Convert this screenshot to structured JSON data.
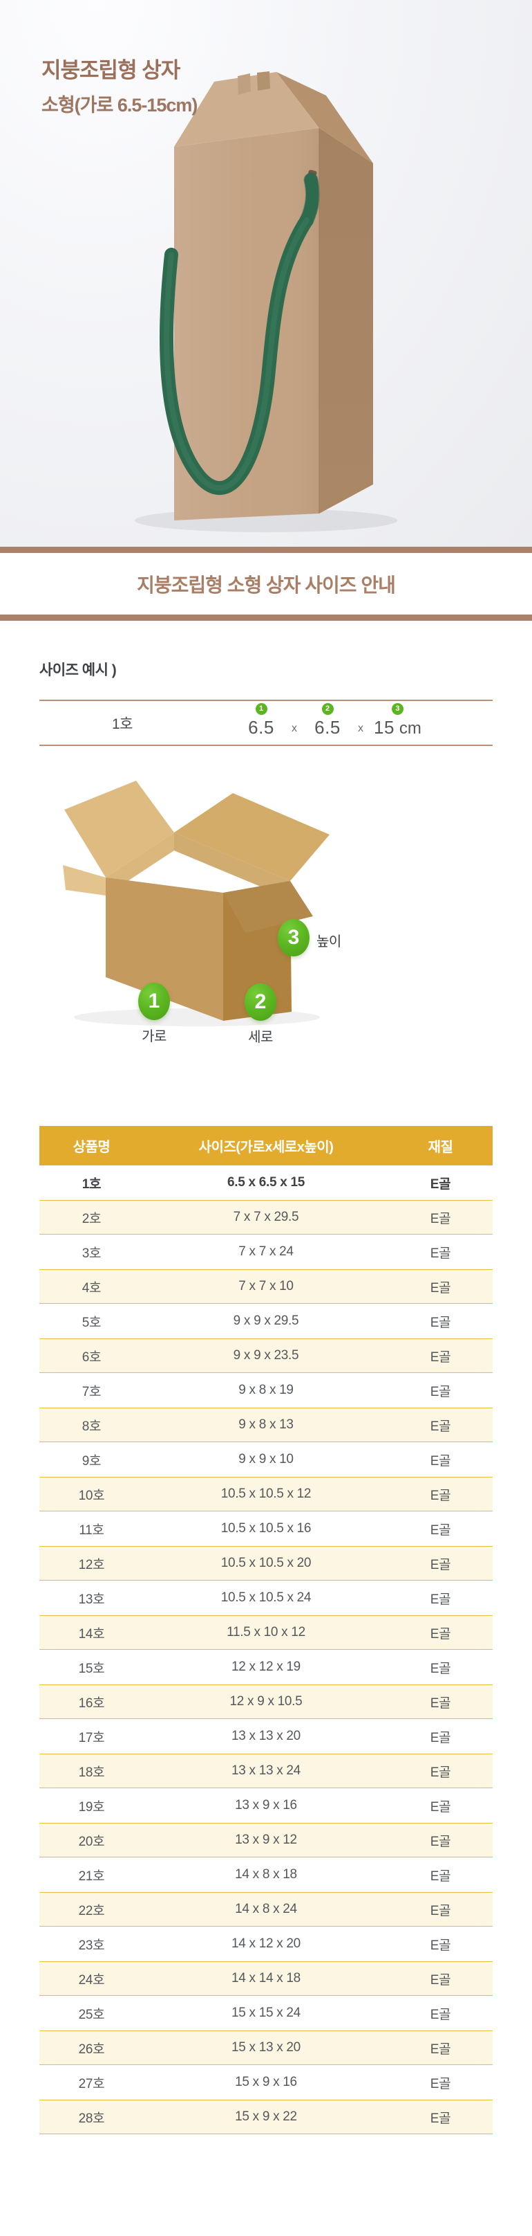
{
  "page": {
    "title": "지붕조립형 상자",
    "subtitle": "소형(가로 6.5-15cm)"
  },
  "banner": {
    "heading": "지붕조립형 소형 상자 사이즈 안내"
  },
  "size_example": {
    "label": "사이즈 예시 )",
    "item_name": "1호",
    "separator": "x",
    "unit": "cm",
    "measures": [
      {
        "num": "1",
        "value": "6.5"
      },
      {
        "num": "2",
        "value": "6.5"
      },
      {
        "num": "3",
        "value": "15"
      }
    ]
  },
  "diagram": {
    "badges": [
      {
        "num": "1",
        "label": "가로"
      },
      {
        "num": "2",
        "label": "세로"
      },
      {
        "num": "3",
        "label": "높이"
      }
    ]
  },
  "table": {
    "headers": [
      "상품명",
      "사이즈(가로x세로x높이)",
      "재질"
    ],
    "rows": [
      {
        "name": "1호",
        "size": "6.5 x 6.5 x 15",
        "material": "E골"
      },
      {
        "name": "2호",
        "size": "7 x 7 x 29.5",
        "material": "E골"
      },
      {
        "name": "3호",
        "size": "7 x 7 x 24",
        "material": "E골"
      },
      {
        "name": "4호",
        "size": "7 x 7 x 10",
        "material": "E골"
      },
      {
        "name": "5호",
        "size": "9 x 9 x 29.5",
        "material": "E골"
      },
      {
        "name": "6호",
        "size": "9 x 9 x 23.5",
        "material": "E골"
      },
      {
        "name": "7호",
        "size": "9 x 8 x 19",
        "material": "E골"
      },
      {
        "name": "8호",
        "size": "9 x 8 x 13",
        "material": "E골"
      },
      {
        "name": "9호",
        "size": "9 x 9 x 10",
        "material": "E골"
      },
      {
        "name": "10호",
        "size": "10.5 x 10.5 x 12",
        "material": "E골"
      },
      {
        "name": "11호",
        "size": "10.5 x 10.5 x 16",
        "material": "E골"
      },
      {
        "name": "12호",
        "size": "10.5 x 10.5 x 20",
        "material": "E골"
      },
      {
        "name": "13호",
        "size": "10.5 x 10.5 x 24",
        "material": "E골"
      },
      {
        "name": "14호",
        "size": "11.5 x 10 x 12",
        "material": "E골"
      },
      {
        "name": "15호",
        "size": "12 x 12 x 19",
        "material": "E골"
      },
      {
        "name": "16호",
        "size": "12 x 9 x 10.5",
        "material": "E골"
      },
      {
        "name": "17호",
        "size": "13 x 13 x 20",
        "material": "E골"
      },
      {
        "name": "18호",
        "size": "13 x 13 x 24",
        "material": "E골"
      },
      {
        "name": "19호",
        "size": "13 x 9 x 16",
        "material": "E골"
      },
      {
        "name": "20호",
        "size": "13 x 9 x 12",
        "material": "E골"
      },
      {
        "name": "21호",
        "size": "14 x 8 x 18",
        "material": "E골"
      },
      {
        "name": "22호",
        "size": "14 x 8 x 24",
        "material": "E골"
      },
      {
        "name": "23호",
        "size": "14 x 12 x 20",
        "material": "E골"
      },
      {
        "name": "24호",
        "size": "14 x 14 x 18",
        "material": "E골"
      },
      {
        "name": "25호",
        "size": "15 x 15 x 24",
        "material": "E골"
      },
      {
        "name": "26호",
        "size": "15 x 13 x 20",
        "material": "E골"
      },
      {
        "name": "27호",
        "size": "15 x 9 x 16",
        "material": "E골"
      },
      {
        "name": "28호",
        "size": "15 x 9 x 22",
        "material": "E골"
      }
    ]
  },
  "colors": {
    "title_brown": "#9a705a",
    "banner_brown": "#ab8169",
    "heading_brown": "#a87e66",
    "line_brown": "#b98f75",
    "table_header_gold": "#e2ab2e",
    "row_cream": "#fdf6e2",
    "row_border_gold": "#e8bb4d",
    "text_dark": "#54585c",
    "badge_green": "#5bb51f",
    "strap_green": "#2e6b4e"
  }
}
